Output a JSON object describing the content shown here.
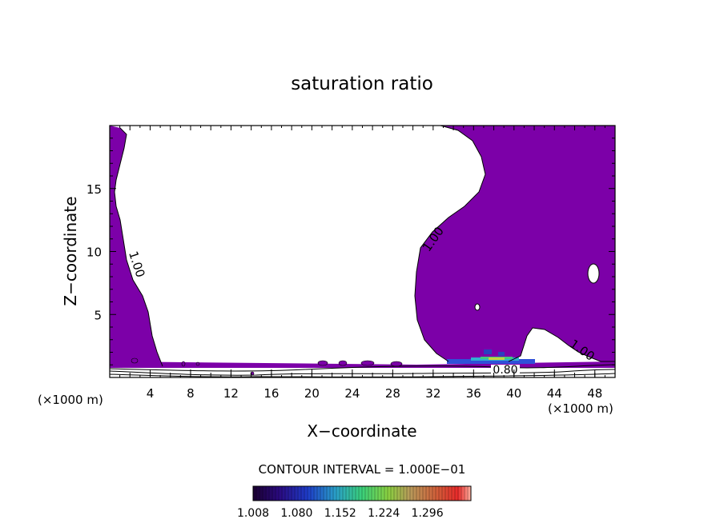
{
  "chart_data": {
    "type": "contour",
    "title": "saturation ratio",
    "xlabel": "X−coordinate",
    "ylabel": "Z−coordinate",
    "x_unit": "(×1000 m)",
    "x_unit_right": "(×1000 m)",
    "xlim": [
      0,
      50
    ],
    "ylim": [
      0,
      20
    ],
    "x_ticks": [
      4,
      8,
      12,
      16,
      20,
      24,
      28,
      32,
      36,
      40,
      44,
      48
    ],
    "y_ticks": [
      5,
      10,
      15
    ],
    "fill_color": "#7c00a8",
    "contour_labels": [
      {
        "text": "1.00",
        "x": 2.3,
        "z": 9.0
      },
      {
        "text": "1.00",
        "x": 32.4,
        "z": 11.5
      },
      {
        "text": "1.00",
        "x": 46.0,
        "z": 2.0
      },
      {
        "text": "0.80",
        "x": 39.0,
        "z": 0.7
      }
    ],
    "contour_interval_text": "CONTOUR INTERVAL = 1.000E−01",
    "colorbar": {
      "tick_labels": [
        "1.008",
        "1.080",
        "1.152",
        "1.224",
        "1.296"
      ],
      "range": [
        1.008,
        1.368
      ]
    }
  }
}
